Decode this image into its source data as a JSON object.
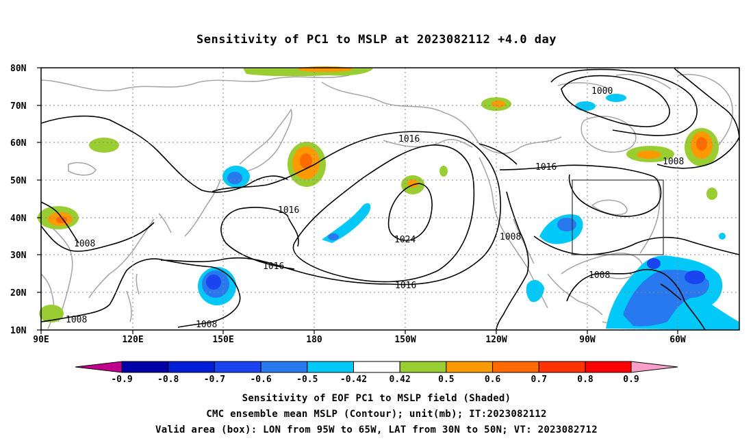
{
  "title": "Sensitivity of PC1 to MSLP at 2023082112 +4.0 day",
  "map": {
    "lat_labels": [
      "80N",
      "70N",
      "60N",
      "50N",
      "40N",
      "30N",
      "20N",
      "10N"
    ],
    "lon_labels": [
      "90E",
      "120E",
      "150E",
      "180",
      "150W",
      "120W",
      "90W",
      "60W"
    ],
    "contour_labels": [
      {
        "text": "1000"
      },
      {
        "text": "1008"
      },
      {
        "text": "1016"
      },
      {
        "text": "1016"
      },
      {
        "text": "1016"
      },
      {
        "text": "1016"
      },
      {
        "text": "1016"
      },
      {
        "text": "1024"
      },
      {
        "text": "1008"
      },
      {
        "text": "1008"
      },
      {
        "text": "1008"
      },
      {
        "text": "1008"
      },
      {
        "text": "1008"
      }
    ],
    "valid_box": {
      "lon_from": "95W",
      "lon_to": "65W",
      "lat_from": "30N",
      "lat_to": "50N"
    }
  },
  "colorbar": {
    "labels": [
      "-0.9",
      "-0.8",
      "-0.7",
      "-0.6",
      "-0.5",
      "-0.42",
      "0.42",
      "0.5",
      "0.6",
      "0.7",
      "0.8",
      "0.9"
    ],
    "colors": [
      "#c0008c",
      "#0000a8",
      "#0020d8",
      "#1a44f0",
      "#2878f0",
      "#00c8f8",
      "#ffffff",
      "#9acd32",
      "#ff9900",
      "#ff6a00",
      "#ff3300",
      "#ff0000",
      "#f8a0c8"
    ]
  },
  "captions": {
    "line1": "Sensitivity of EOF PC1 to MSLP field (Shaded)",
    "line2": "CMC ensemble mean MSLP (Contour); unit(mb); IT:2023082112",
    "line3": "Valid area (box): LON from 95W to 65W, LAT from 30N to 50N; VT: 2023082712"
  }
}
